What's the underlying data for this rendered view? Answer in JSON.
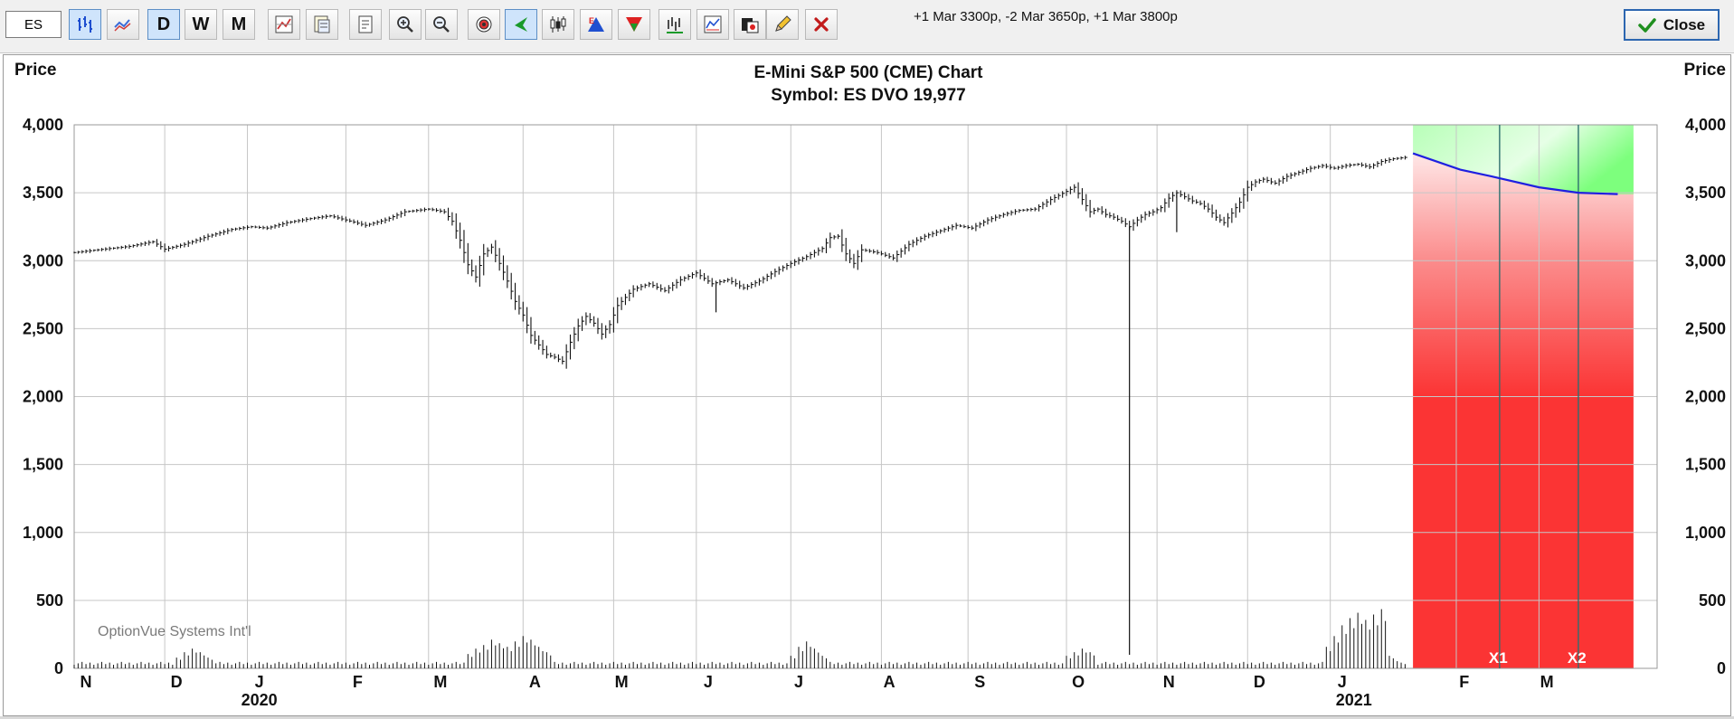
{
  "toolbar": {
    "symbol_input": "ES",
    "period_buttons": [
      "D",
      "W",
      "M"
    ],
    "position_text": "+1 Mar 3300p, -2 Mar 3650p, +1 Mar 3800p",
    "close_label": "Close",
    "icons": [
      "bar-chart-icon",
      "line-chart-icon",
      "daily-button",
      "weekly-button",
      "monthly-button",
      "chart-settings-icon",
      "study-icon",
      "notes-icon",
      "zoom-in-icon",
      "zoom-out-icon",
      "target-icon",
      "arrow-icon",
      "candlestick-icon",
      "triangle-up-icon",
      "triangle-down-icon",
      "volume-bars-icon",
      "indicator-icon",
      "palette-icon",
      "pencil-icon",
      "delete-x-icon"
    ]
  },
  "chart_data": {
    "type": "bar",
    "title": "E-Mini S&P 500 (CME) Chart",
    "subtitle": "Symbol: ES  DVO 19,977",
    "ylabel_left": "Price",
    "ylabel_right": "Price",
    "ylim": [
      0,
      4000
    ],
    "yticks": [
      0,
      500,
      1000,
      1500,
      2000,
      2500,
      3000,
      3500,
      4000
    ],
    "ytick_labels": [
      "0",
      "500",
      "1,000",
      "1,500",
      "2,000",
      "2,500",
      "3,000",
      "3,500",
      "4,000"
    ],
    "month_labels": [
      "N",
      "D",
      "J",
      "F",
      "M",
      "A",
      "M",
      "J",
      "J",
      "A",
      "S",
      "O",
      "N",
      "D",
      "J",
      "F",
      "M"
    ],
    "year_labels": [
      "2020",
      "2021"
    ],
    "watermark": "OptionVue Systems Int'l",
    "series": [
      {
        "name": "price",
        "points": [
          [
            0,
            3060
          ],
          [
            6,
            3080
          ],
          [
            14,
            3105
          ],
          [
            20,
            3140
          ],
          [
            23,
            3085
          ],
          [
            28,
            3120
          ],
          [
            34,
            3180
          ],
          [
            40,
            3230
          ],
          [
            45,
            3250
          ],
          [
            49,
            3240
          ],
          [
            54,
            3280
          ],
          [
            60,
            3310
          ],
          [
            65,
            3330
          ],
          [
            69,
            3300
          ],
          [
            74,
            3260
          ],
          [
            79,
            3300
          ],
          [
            84,
            3360
          ],
          [
            90,
            3380
          ],
          [
            94,
            3360
          ],
          [
            96,
            3290
          ],
          [
            98,
            3150
          ],
          [
            100,
            2970
          ],
          [
            102,
            2880
          ],
          [
            104,
            3050
          ],
          [
            106,
            3100
          ],
          [
            108,
            2980
          ],
          [
            110,
            2850
          ],
          [
            112,
            2700
          ],
          [
            114,
            2600
          ],
          [
            116,
            2450
          ],
          [
            118,
            2380
          ],
          [
            120,
            2310
          ],
          [
            122,
            2290
          ],
          [
            124,
            2260
          ],
          [
            126,
            2400
          ],
          [
            128,
            2520
          ],
          [
            130,
            2590
          ],
          [
            132,
            2540
          ],
          [
            134,
            2460
          ],
          [
            136,
            2530
          ],
          [
            138,
            2670
          ],
          [
            142,
            2790
          ],
          [
            146,
            2830
          ],
          [
            150,
            2780
          ],
          [
            154,
            2860
          ],
          [
            158,
            2910
          ],
          [
            162,
            2830
          ],
          [
            166,
            2860
          ],
          [
            170,
            2800
          ],
          [
            174,
            2850
          ],
          [
            178,
            2920
          ],
          [
            182,
            2980
          ],
          [
            186,
            3030
          ],
          [
            190,
            3090
          ],
          [
            192,
            3170
          ],
          [
            194,
            3180
          ],
          [
            196,
            3050
          ],
          [
            198,
            2980
          ],
          [
            200,
            3080
          ],
          [
            204,
            3060
          ],
          [
            208,
            3020
          ],
          [
            212,
            3120
          ],
          [
            216,
            3180
          ],
          [
            220,
            3220
          ],
          [
            224,
            3260
          ],
          [
            228,
            3240
          ],
          [
            232,
            3300
          ],
          [
            236,
            3340
          ],
          [
            240,
            3370
          ],
          [
            244,
            3380
          ],
          [
            248,
            3450
          ],
          [
            252,
            3510
          ],
          [
            254,
            3540
          ],
          [
            256,
            3450
          ],
          [
            258,
            3360
          ],
          [
            260,
            3380
          ],
          [
            262,
            3340
          ],
          [
            264,
            3320
          ],
          [
            266,
            3290
          ],
          [
            268,
            3250
          ],
          [
            270,
            3300
          ],
          [
            272,
            3340
          ],
          [
            274,
            3360
          ],
          [
            276,
            3390
          ],
          [
            278,
            3460
          ],
          [
            280,
            3500
          ],
          [
            282,
            3470
          ],
          [
            284,
            3440
          ],
          [
            286,
            3420
          ],
          [
            288,
            3380
          ],
          [
            290,
            3320
          ],
          [
            292,
            3280
          ],
          [
            294,
            3350
          ],
          [
            296,
            3430
          ],
          [
            298,
            3540
          ],
          [
            300,
            3580
          ],
          [
            302,
            3600
          ],
          [
            305,
            3570
          ],
          [
            308,
            3620
          ],
          [
            311,
            3650
          ],
          [
            314,
            3680
          ],
          [
            317,
            3700
          ],
          [
            320,
            3680
          ],
          [
            323,
            3700
          ],
          [
            326,
            3710
          ],
          [
            329,
            3690
          ],
          [
            332,
            3730
          ],
          [
            335,
            3750
          ],
          [
            338,
            3760
          ]
        ]
      },
      {
        "name": "volume",
        "spikes": [
          [
            26,
            0.06
          ],
          [
            28,
            0.09
          ],
          [
            30,
            0.11
          ],
          [
            32,
            0.09
          ],
          [
            34,
            0.06
          ],
          [
            100,
            0.08
          ],
          [
            102,
            0.11
          ],
          [
            104,
            0.13
          ],
          [
            106,
            0.16
          ],
          [
            108,
            0.14
          ],
          [
            110,
            0.12
          ],
          [
            112,
            0.15
          ],
          [
            114,
            0.18
          ],
          [
            116,
            0.16
          ],
          [
            118,
            0.12
          ],
          [
            120,
            0.09
          ],
          [
            182,
            0.07
          ],
          [
            184,
            0.12
          ],
          [
            186,
            0.15
          ],
          [
            188,
            0.11
          ],
          [
            190,
            0.07
          ],
          [
            252,
            0.07
          ],
          [
            254,
            0.09
          ],
          [
            256,
            0.11
          ],
          [
            258,
            0.09
          ],
          [
            318,
            0.12
          ],
          [
            320,
            0.18
          ],
          [
            322,
            0.24
          ],
          [
            324,
            0.28
          ],
          [
            326,
            0.31
          ],
          [
            328,
            0.27
          ],
          [
            330,
            0.3
          ],
          [
            332,
            0.33
          ],
          [
            334,
            0.07
          ],
          [
            336,
            0.04
          ]
        ]
      },
      {
        "name": "position_value",
        "points": [
          [
            340,
            3790
          ],
          [
            352,
            3670
          ],
          [
            360,
            3620
          ],
          [
            372,
            3540
          ],
          [
            382,
            3500
          ],
          [
            392,
            3490
          ]
        ]
      }
    ],
    "spikes": [
      [
        163,
        2620
      ],
      [
        268,
        100
      ],
      [
        280,
        3210
      ]
    ],
    "expirations": [
      "X1",
      "X2"
    ],
    "expiration_days": [
      362,
      382
    ],
    "zone_colors": {
      "profit": "#7dff7d",
      "loss": "#fb3434",
      "curve": "#1f1fe0",
      "expiration_line": "#2f6f6f",
      "grid": "#c6c6c6"
    }
  }
}
